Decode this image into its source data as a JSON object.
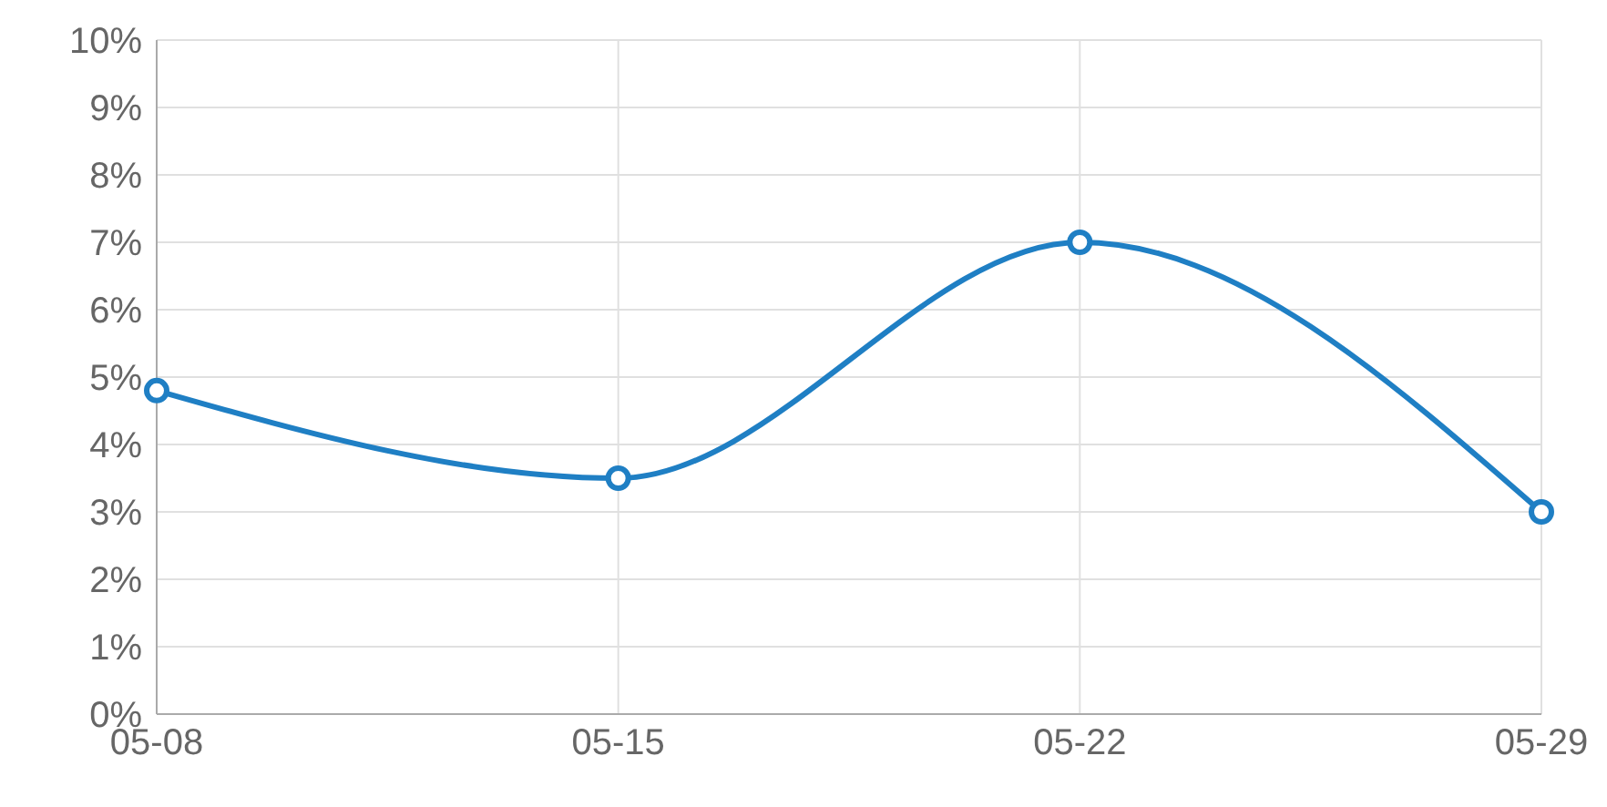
{
  "chart_data": {
    "type": "line",
    "categories": [
      "05-08",
      "05-15",
      "05-22",
      "05-29"
    ],
    "series": [
      {
        "color": "#1f7fc4",
        "values": [
          4.8,
          3.5,
          7.0,
          3.0
        ]
      }
    ],
    "ylim": [
      0,
      10
    ],
    "yticks": [
      {
        "value": 0,
        "label": "0%"
      },
      {
        "value": 1,
        "label": "1%"
      },
      {
        "value": 2,
        "label": "2%"
      },
      {
        "value": 3,
        "label": "3%"
      },
      {
        "value": 4,
        "label": "4%"
      },
      {
        "value": 5,
        "label": "5%"
      },
      {
        "value": 6,
        "label": "6%"
      },
      {
        "value": 7,
        "label": "7%"
      },
      {
        "value": 8,
        "label": "8%"
      },
      {
        "value": 9,
        "label": "9%"
      },
      {
        "value": 10,
        "label": "10%"
      }
    ],
    "grid": true,
    "marker": "circle"
  }
}
